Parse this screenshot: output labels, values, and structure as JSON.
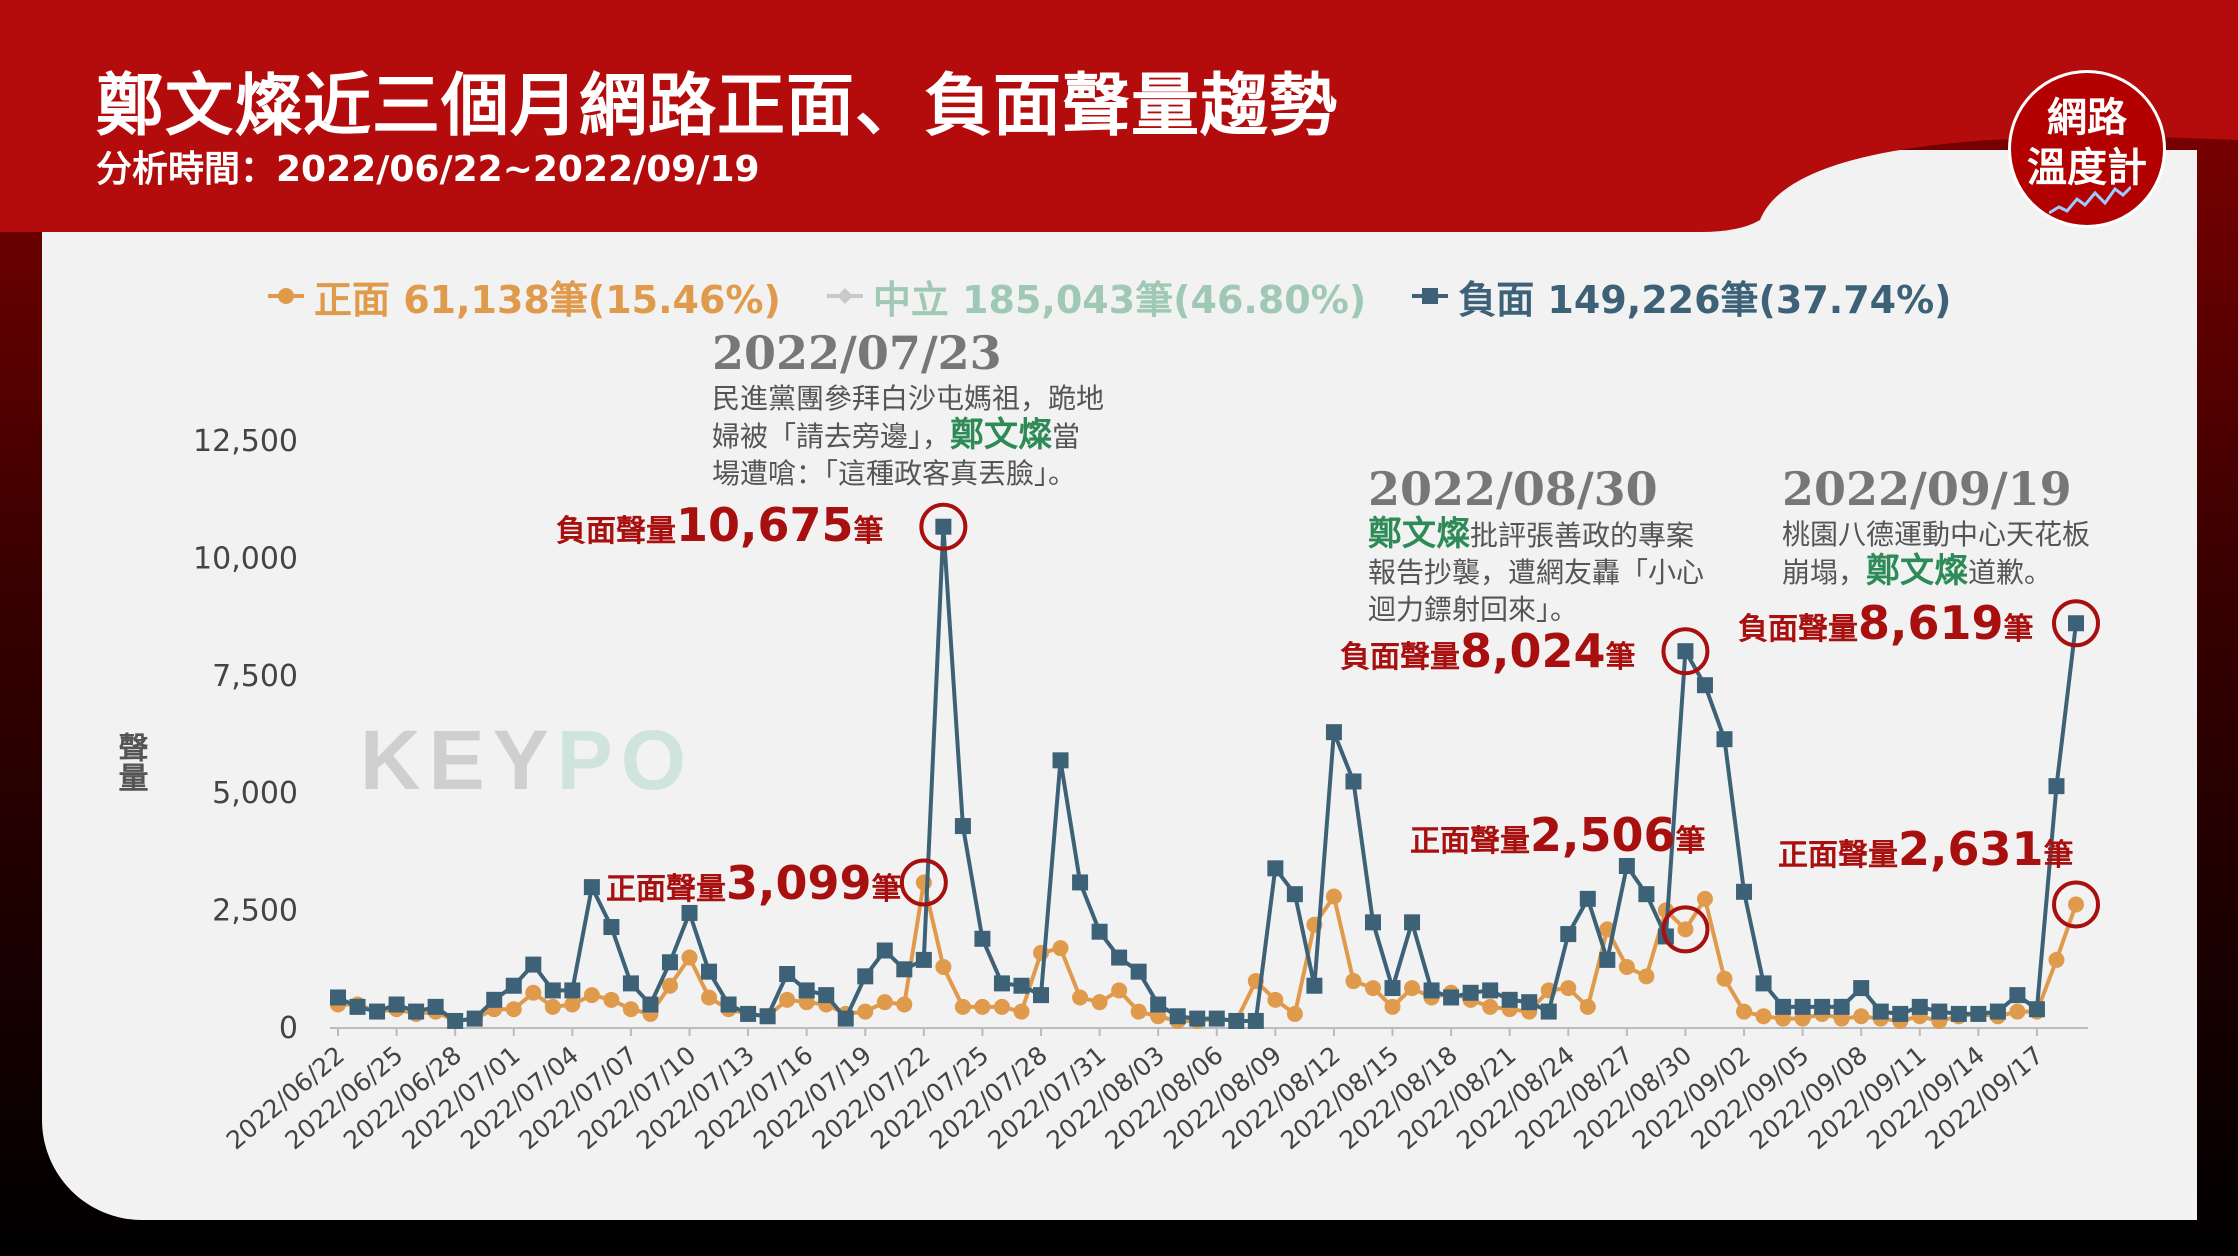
{
  "header": {
    "title": "鄭文燦近三個月網路正面、負面聲量趨勢",
    "subtitle": "分析時間：2022/06/22~2022/09/19",
    "badge_line1": "網路",
    "badge_line2": "溫度計"
  },
  "watermark": {
    "key": "KEY",
    "po": "PO"
  },
  "colors": {
    "positive": "#e09a4b",
    "neutral": "#c9c9c9",
    "negative": "#3d6277",
    "annotation_red": "#a80f0f",
    "name_green": "#2e8b57"
  },
  "legend": {
    "positive": "正面 61,138筆(15.46%)",
    "neutral": "中立 185,043筆(46.80%)",
    "negative": "負面 149,226筆(37.74%)"
  },
  "annotations": {
    "a1": {
      "date": "2022/07/23",
      "line1": "民進黨團參拜白沙屯媽祖，跪地",
      "line2_pre": "婦被「請去旁邊」，",
      "name": "鄭文燦",
      "line2_post": "當",
      "line3": "場遭嗆：「這種政客真丟臉」。"
    },
    "a2": {
      "date": "2022/08/30",
      "name": "鄭文燦",
      "line1_post": "批評張善政的專案",
      "line2": "報告抄襲，遭網友轟「小心",
      "line3": "迴力鏢射回來」。"
    },
    "a3": {
      "date": "2022/09/19",
      "line1": "桃園八德運動中心天花板",
      "line2_pre": "崩塌，",
      "name": "鄭文燦",
      "line2_post": "道歉。"
    }
  },
  "callouts": {
    "neg1": {
      "label": "負面聲量",
      "value": "10,675",
      "unit": "筆"
    },
    "pos1": {
      "label": "正面聲量",
      "value": "3,099",
      "unit": "筆"
    },
    "neg2": {
      "label": "負面聲量",
      "value": "8,024",
      "unit": "筆"
    },
    "pos2": {
      "label": "正面聲量",
      "value": "2,506",
      "unit": "筆"
    },
    "neg3": {
      "label": "負面聲量",
      "value": "8,619",
      "unit": "筆"
    },
    "pos3": {
      "label": "正面聲量",
      "value": "2,631",
      "unit": "筆"
    }
  },
  "chart_data": {
    "type": "line",
    "ylabel": "聲量",
    "ylim": [
      0,
      12500
    ],
    "yticks": [
      0,
      2500,
      5000,
      7500,
      10000,
      12500
    ],
    "ytick_labels": [
      "0",
      "2,500",
      "5,000",
      "7,500",
      "10,000",
      "12,500"
    ],
    "x_start": "2022/06/22",
    "x_end": "2022/09/19",
    "x_tick_labels": [
      "2022/06/22",
      "2022/06/25",
      "2022/06/28",
      "2022/07/01",
      "2022/07/04",
      "2022/07/07",
      "2022/07/10",
      "2022/07/13",
      "2022/07/16",
      "2022/07/19",
      "2022/07/22",
      "2022/07/25",
      "2022/07/28",
      "2022/07/31",
      "2022/08/03",
      "2022/08/06",
      "2022/08/09",
      "2022/08/12",
      "2022/08/15",
      "2022/08/18",
      "2022/08/21",
      "2022/08/24",
      "2022/08/27",
      "2022/08/30",
      "2022/09/02",
      "2022/09/05",
      "2022/09/08",
      "2022/09/11",
      "2022/09/14",
      "2022/09/17"
    ],
    "legend_position": "top",
    "grid": false,
    "series": [
      {
        "name": "正面",
        "values": [
          500,
          500,
          350,
          400,
          300,
          350,
          150,
          200,
          400,
          400,
          750,
          450,
          500,
          700,
          600,
          400,
          300,
          900,
          1500,
          650,
          400,
          300,
          250,
          600,
          550,
          500,
          300,
          350,
          550,
          500,
          3099,
          1300,
          450,
          450,
          450,
          350,
          1600,
          1700,
          650,
          550,
          800,
          350,
          250,
          150,
          150,
          200,
          150,
          1000,
          600,
          300,
          2200,
          2800,
          1000,
          850,
          450,
          850,
          650,
          750,
          600,
          450,
          400,
          350,
          800,
          850,
          450,
          2100,
          1300,
          1100,
          2506,
          2100,
          2750,
          1050,
          350,
          250,
          200,
          200,
          300,
          200,
          250,
          200,
          150,
          250,
          150,
          250,
          300,
          250,
          350,
          350,
          1450,
          2631
        ]
      },
      {
        "name": "中立",
        "values": []
      },
      {
        "name": "負面",
        "values": [
          650,
          450,
          350,
          500,
          350,
          450,
          150,
          200,
          600,
          900,
          1350,
          800,
          800,
          3000,
          2150,
          950,
          500,
          1400,
          2450,
          1200,
          500,
          300,
          250,
          1150,
          800,
          700,
          200,
          1100,
          1650,
          1250,
          1450,
          10675,
          4300,
          1900,
          950,
          900,
          700,
          5700,
          3100,
          2050,
          1500,
          1200,
          500,
          250,
          200,
          200,
          150,
          150,
          3400,
          2850,
          900,
          6300,
          5250,
          2250,
          850,
          2250,
          800,
          650,
          750,
          800,
          600,
          550,
          350,
          2000,
          2750,
          1450,
          3450,
          2850,
          1950,
          8024,
          7300,
          6150,
          2900,
          950,
          450,
          450,
          450,
          450,
          850,
          350,
          300,
          450,
          350,
          300,
          300,
          350,
          700,
          400,
          5150,
          8619
        ]
      }
    ]
  }
}
